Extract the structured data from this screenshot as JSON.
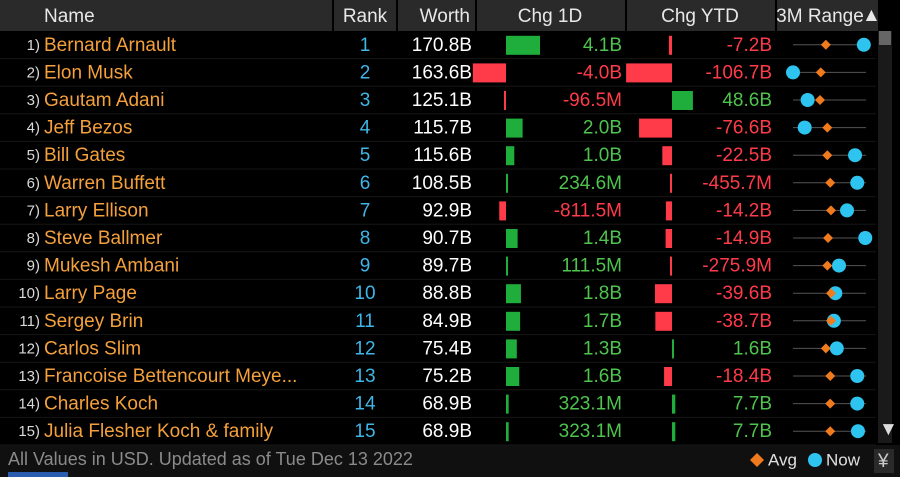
{
  "columns": [
    "Name",
    "Rank",
    "Worth",
    "Chg 1D",
    "Chg YTD",
    "3M Range"
  ],
  "rows": [
    {
      "index": "1)",
      "name": "Bernard Arnault",
      "rank": 1,
      "worth": "170.8B",
      "chg_1d": {
        "value": 4.1,
        "label": "4.1B"
      },
      "chg_ytd": {
        "value": -7.2,
        "label": "-7.2B"
      },
      "range_3m": {
        "avg": 0.45,
        "now": 0.97
      }
    },
    {
      "index": "2)",
      "name": "Elon Musk",
      "rank": 2,
      "worth": "163.6B",
      "chg_1d": {
        "value": -4.0,
        "label": "-4.0B"
      },
      "chg_ytd": {
        "value": -106.7,
        "label": "-106.7B"
      },
      "range_3m": {
        "avg": 0.38,
        "now": 0.0
      }
    },
    {
      "index": "3)",
      "name": "Gautam Adani",
      "rank": 3,
      "worth": "125.1B",
      "chg_1d": {
        "value": -0.0965,
        "label": "-96.5M"
      },
      "chg_ytd": {
        "value": 48.6,
        "label": "48.6B"
      },
      "range_3m": {
        "avg": 0.37,
        "now": 0.2
      }
    },
    {
      "index": "4)",
      "name": "Jeff Bezos",
      "rank": 4,
      "worth": "115.7B",
      "chg_1d": {
        "value": 2.0,
        "label": "2.0B"
      },
      "chg_ytd": {
        "value": -76.6,
        "label": "-76.6B"
      },
      "range_3m": {
        "avg": 0.47,
        "now": 0.16
      }
    },
    {
      "index": "5)",
      "name": "Bill Gates",
      "rank": 5,
      "worth": "115.6B",
      "chg_1d": {
        "value": 1.0,
        "label": "1.0B"
      },
      "chg_ytd": {
        "value": -22.5,
        "label": "-22.5B"
      },
      "range_3m": {
        "avg": 0.47,
        "now": 0.85
      }
    },
    {
      "index": "6)",
      "name": "Warren Buffett",
      "rank": 6,
      "worth": "108.5B",
      "chg_1d": {
        "value": 0.2346,
        "label": "234.6M"
      },
      "chg_ytd": {
        "value": -0.4557,
        "label": "-455.7M"
      },
      "range_3m": {
        "avg": 0.51,
        "now": 0.88
      }
    },
    {
      "index": "7)",
      "name": "Larry Ellison",
      "rank": 7,
      "worth": "92.9B",
      "chg_1d": {
        "value": -0.8115,
        "label": "-811.5M"
      },
      "chg_ytd": {
        "value": -14.2,
        "label": "-14.2B"
      },
      "range_3m": {
        "avg": 0.52,
        "now": 0.74
      }
    },
    {
      "index": "8)",
      "name": "Steve Ballmer",
      "rank": 8,
      "worth": "90.7B",
      "chg_1d": {
        "value": 1.4,
        "label": "1.4B"
      },
      "chg_ytd": {
        "value": -14.9,
        "label": "-14.9B"
      },
      "range_3m": {
        "avg": 0.48,
        "now": 0.99
      }
    },
    {
      "index": "9)",
      "name": "Mukesh Ambani",
      "rank": 9,
      "worth": "89.7B",
      "chg_1d": {
        "value": 0.1115,
        "label": "111.5M"
      },
      "chg_ytd": {
        "value": -0.2759,
        "label": "-275.9M"
      },
      "range_3m": {
        "avg": 0.47,
        "now": 0.63
      }
    },
    {
      "index": "10)",
      "name": "Larry Page",
      "rank": 10,
      "worth": "88.8B",
      "chg_1d": {
        "value": 1.8,
        "label": "1.8B"
      },
      "chg_ytd": {
        "value": -39.6,
        "label": "-39.6B"
      },
      "range_3m": {
        "avg": 0.52,
        "now": 0.58
      }
    },
    {
      "index": "11)",
      "name": "Sergey Brin",
      "rank": 11,
      "worth": "84.9B",
      "chg_1d": {
        "value": 1.7,
        "label": "1.7B"
      },
      "chg_ytd": {
        "value": -38.7,
        "label": "-38.7B"
      },
      "range_3m": {
        "avg": 0.52,
        "now": 0.56
      }
    },
    {
      "index": "12)",
      "name": "Carlos Slim",
      "rank": 12,
      "worth": "75.4B",
      "chg_1d": {
        "value": 1.3,
        "label": "1.3B"
      },
      "chg_ytd": {
        "value": 1.6,
        "label": "1.6B"
      },
      "range_3m": {
        "avg": 0.45,
        "now": 0.6
      }
    },
    {
      "index": "13)",
      "name": "Francoise Bettencourt Meye...",
      "rank": 13,
      "worth": "75.2B",
      "chg_1d": {
        "value": 1.6,
        "label": "1.6B"
      },
      "chg_ytd": {
        "value": -18.4,
        "label": "-18.4B"
      },
      "range_3m": {
        "avg": 0.51,
        "now": 0.88
      }
    },
    {
      "index": "14)",
      "name": "Charles Koch",
      "rank": 14,
      "worth": "68.9B",
      "chg_1d": {
        "value": 0.3231,
        "label": "323.1M"
      },
      "chg_ytd": {
        "value": 7.7,
        "label": "7.7B"
      },
      "range_3m": {
        "avg": 0.51,
        "now": 0.88
      }
    },
    {
      "index": "15)",
      "name": "Julia Flesher Koch & family",
      "rank": 15,
      "worth": "68.9B",
      "chg_1d": {
        "value": 0.3231,
        "label": "323.1M"
      },
      "chg_ytd": {
        "value": 7.7,
        "label": "7.7B"
      },
      "range_3m": {
        "avg": 0.51,
        "now": 0.89
      }
    }
  ],
  "footer": "All Values in USD. Updated as of Tue Dec 13 2022",
  "legend": [
    "Avg",
    "Now"
  ]
}
